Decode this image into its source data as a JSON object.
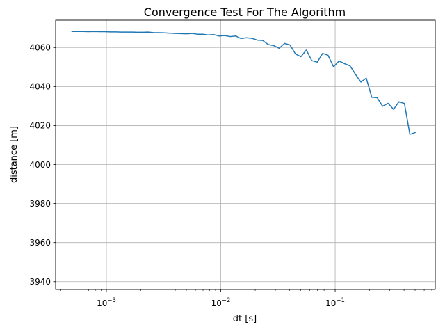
{
  "chart_data": {
    "type": "line",
    "title": "Convergence Test For The Algorithm",
    "xlabel": "dt [s]",
    "ylabel": "distance [m]",
    "xscale": "log",
    "xlim": [
      0.00036,
      0.75
    ],
    "ylim": [
      3936,
      4074
    ],
    "grid": true,
    "x_ticks": [
      {
        "value": 0.001,
        "base": "10",
        "exp": "−3"
      },
      {
        "value": 0.01,
        "base": "10",
        "exp": "−2"
      },
      {
        "value": 0.1,
        "base": "10",
        "exp": "−1"
      }
    ],
    "y_ticks": [
      3940,
      3960,
      3980,
      4000,
      4020,
      4040,
      4060
    ],
    "line_color": "#1f77b4",
    "series": [
      {
        "x": [
          0.0005,
          0.00056,
          0.00062,
          0.0007,
          0.00078,
          0.00087,
          0.00097,
          0.00108,
          0.00121,
          0.00135,
          0.0015,
          0.00168,
          0.00187,
          0.00209,
          0.00233,
          0.0026,
          0.0029,
          0.00324,
          0.00361,
          0.00403,
          0.0045,
          0.00502,
          0.0056,
          0.00624,
          0.00697,
          0.00777,
          0.00867,
          0.00968,
          0.0108,
          0.0121,
          0.0135,
          0.015,
          0.0168,
          0.0187,
          0.0209,
          0.0233,
          0.026,
          0.029,
          0.0324,
          0.0361,
          0.0403,
          0.045,
          0.0502,
          0.056,
          0.0624,
          0.0697,
          0.0777,
          0.0867,
          0.0968,
          0.108,
          0.121,
          0.135,
          0.15,
          0.168,
          0.187,
          0.209,
          0.233,
          0.26,
          0.29,
          0.324,
          0.361,
          0.403,
          0.45,
          0.5
        ],
        "y": [
          4068.2,
          4068.2,
          4068.2,
          4068.1,
          4068.2,
          4068.1,
          4068.1,
          4068.0,
          4068.0,
          4067.9,
          4067.9,
          4067.9,
          4067.8,
          4067.8,
          4067.9,
          4067.6,
          4067.6,
          4067.5,
          4067.3,
          4067.2,
          4067.1,
          4067.0,
          4067.2,
          4066.8,
          4066.8,
          4066.4,
          4066.6,
          4065.9,
          4066.1,
          4065.6,
          4065.9,
          4064.6,
          4065.0,
          4064.7,
          4063.8,
          4063.6,
          4061.5,
          4061.0,
          4059.6,
          4062.1,
          4061.3,
          4056.7,
          4055.3,
          4058.7,
          4053.3,
          4052.5,
          4057.0,
          4056.0,
          4050.1,
          4053.1,
          4051.7,
          4050.6,
          4046.4,
          4042.3,
          4044.3,
          4034.5,
          4034.3,
          4029.9,
          4031.4,
          4028.3,
          4032.2,
          4031.3,
          4015.5,
          4016.4
        ]
      }
    ]
  }
}
